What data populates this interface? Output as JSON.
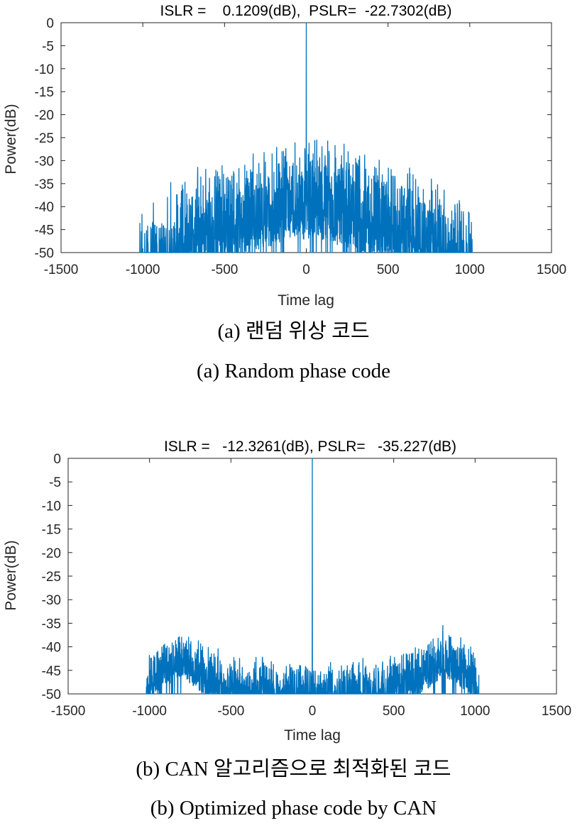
{
  "chart_data": [
    {
      "type": "line",
      "title": "ISLR =    0.1209(dB),  PSLR=  -22.7302(dB)",
      "xlabel": "Time lag",
      "ylabel": "Power(dB)",
      "xlim": [
        -1500,
        1500
      ],
      "ylim": [
        -50,
        0
      ],
      "xticks": [
        -1500,
        -1000,
        -500,
        0,
        500,
        1000,
        1500
      ],
      "yticks": [
        0,
        -5,
        -10,
        -15,
        -20,
        -25,
        -30,
        -35,
        -40,
        -45,
        -50
      ],
      "grid": false,
      "color": "#0072BD",
      "series": [
        {
          "x": [
            -1023,
            -900,
            -800,
            -700,
            -600,
            -500,
            -400,
            -300,
            -200,
            -100,
            -50,
            -1,
            0,
            1,
            50,
            100,
            200,
            300,
            400,
            500,
            600,
            700,
            800,
            900,
            1023
          ],
          "y_peak_envelope": [
            -40,
            -36,
            -34,
            -32,
            -30,
            -29,
            -28,
            -27,
            -26,
            -25,
            -24,
            -25,
            0,
            -25,
            -24,
            -25,
            -26,
            -27,
            -28,
            -29,
            -30,
            -32,
            -34,
            -36,
            -40
          ],
          "y_floor": -50
        }
      ],
      "caption_ko": "(a) 랜덤 위상 코드",
      "caption_en": "(a) Random phase code"
    },
    {
      "type": "line",
      "title": "ISLR =   -12.3261(dB), PSLR=   -35.227(dB)",
      "xlabel": "Time lag",
      "ylabel": "Power(dB)",
      "xlim": [
        -1500,
        1500
      ],
      "ylim": [
        -50,
        0
      ],
      "xticks": [
        -1500,
        -1000,
        -500,
        0,
        500,
        1000,
        1500
      ],
      "yticks": [
        0,
        -5,
        -10,
        -15,
        -20,
        -25,
        -30,
        -35,
        -40,
        -45,
        -50
      ],
      "grid": false,
      "color": "#0072BD",
      "series": [
        {
          "x": [
            -1023,
            -1000,
            -900,
            -800,
            -700,
            -600,
            -500,
            -400,
            -300,
            -200,
            -100,
            -1,
            0,
            1,
            100,
            200,
            300,
            400,
            500,
            600,
            700,
            800,
            900,
            1000,
            1023
          ],
          "y_peak_envelope": [
            -45,
            -40,
            -37,
            -35.2,
            -38,
            -40,
            -41,
            -42,
            -42,
            -43,
            -43,
            -43,
            0,
            -43,
            -43,
            -43,
            -42,
            -42,
            -41,
            -40,
            -38,
            -35.2,
            -37,
            -40,
            -45
          ],
          "y_floor": -50
        }
      ],
      "caption_ko": "(b) CAN 알고리즘으로 최적화된 코드",
      "caption_en": "(b) Optimized phase code by CAN"
    }
  ]
}
